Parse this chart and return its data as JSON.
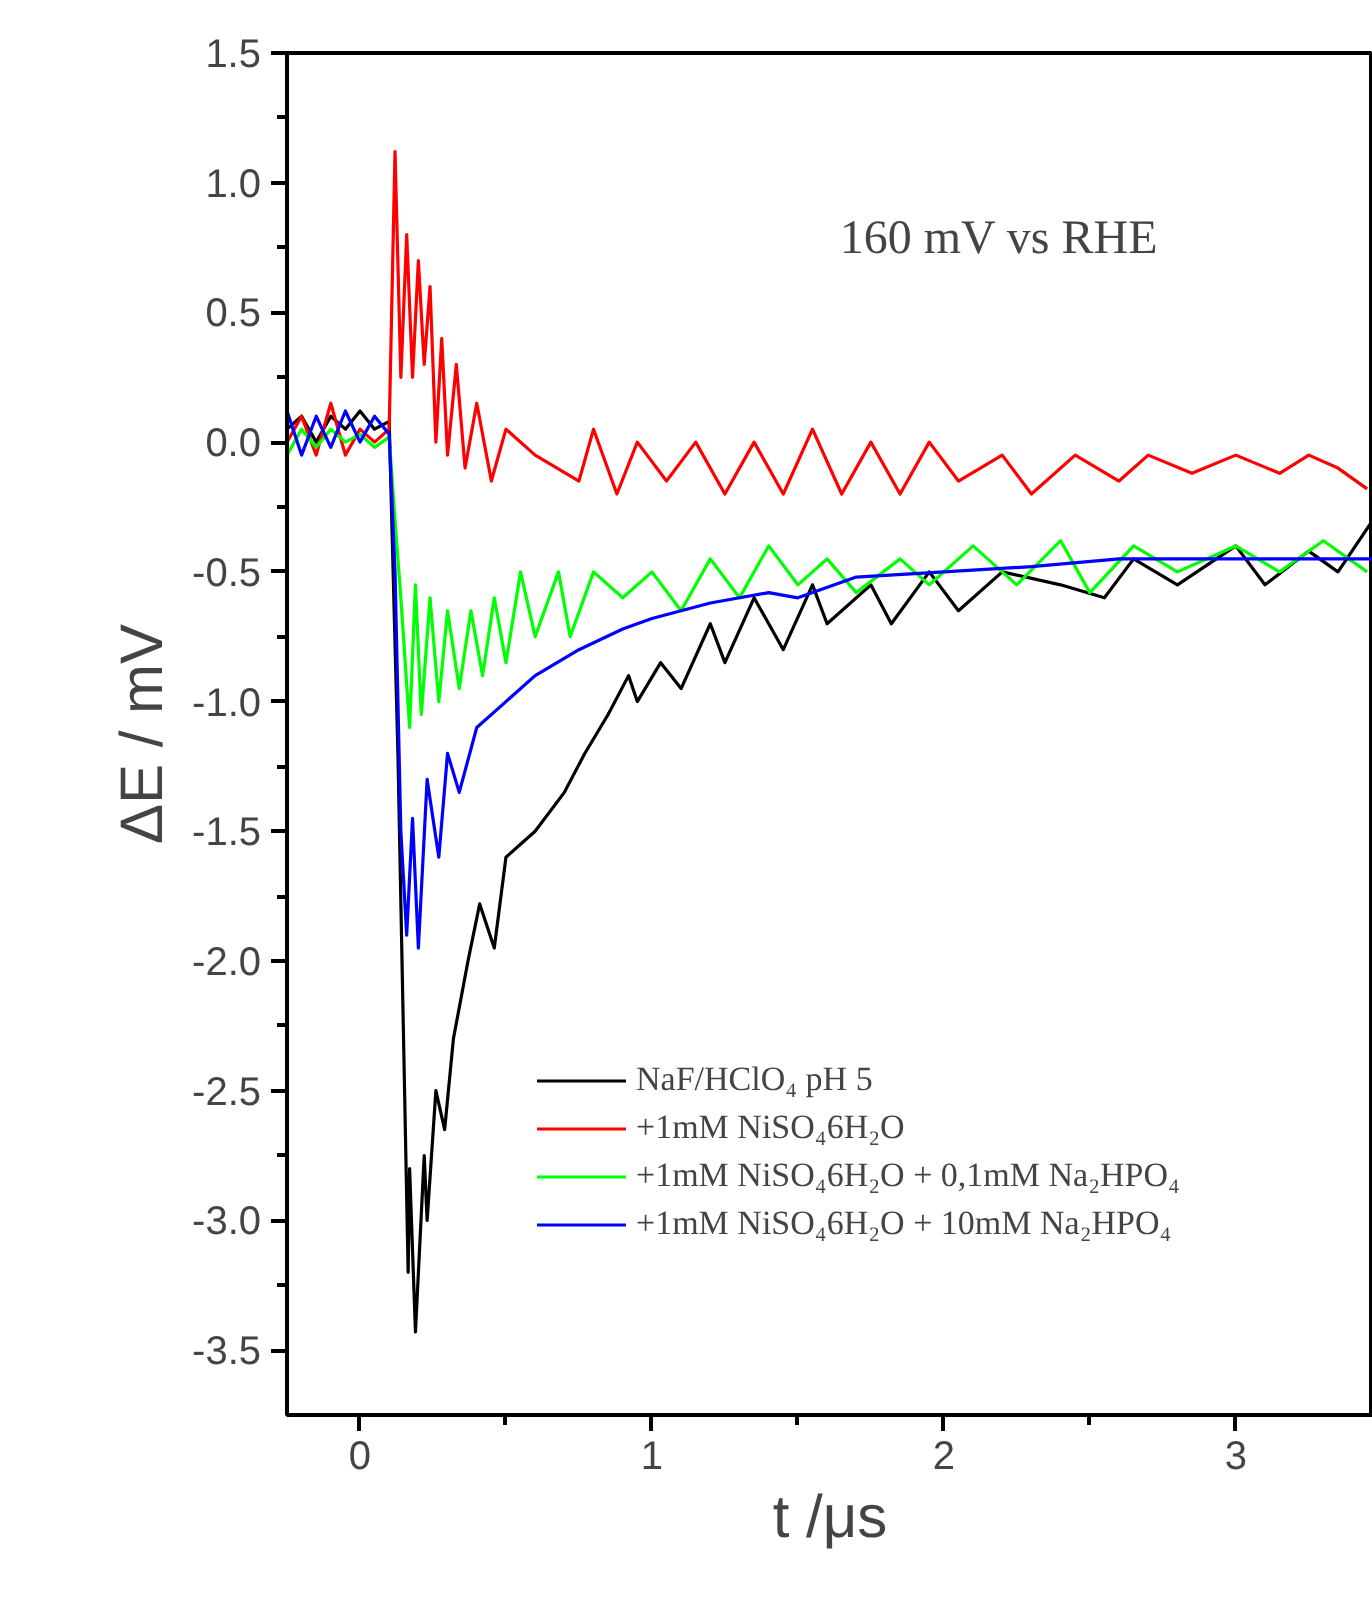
{
  "chart_data": {
    "type": "line",
    "xlabel": "t /μs",
    "ylabel": "ΔE / mV",
    "annotations": [
      "160 mV vs RHE"
    ],
    "xlim": [
      -0.25,
      3.47
    ],
    "ylim": [
      -3.75,
      1.5
    ],
    "xticks": [
      0,
      {
        "value": 0.5,
        "label": null
      },
      1,
      {
        "value": 1.5,
        "label": null
      },
      2,
      {
        "value": 2.5,
        "label": null
      },
      3
    ],
    "yticks": [
      {
        "value": -3.5,
        "label": "-3.5"
      },
      {
        "value": -3.25,
        "label": null
      },
      {
        "value": -3.0,
        "label": "-3.0"
      },
      {
        "value": -2.75,
        "label": null
      },
      {
        "value": -2.5,
        "label": "-2.5"
      },
      {
        "value": -2.25,
        "label": null
      },
      {
        "value": -2.0,
        "label": "-2.0"
      },
      {
        "value": -1.75,
        "label": null
      },
      {
        "value": -1.5,
        "label": "-1.5"
      },
      {
        "value": -1.25,
        "label": null
      },
      {
        "value": -1.0,
        "label": "-1.0"
      },
      {
        "value": -0.75,
        "label": null
      },
      {
        "value": -0.5,
        "label": "-0.5"
      },
      {
        "value": -0.25,
        "label": null
      },
      {
        "value": 0,
        "label": "0.0"
      },
      {
        "value": 0.25,
        "label": null
      },
      {
        "value": 0.5,
        "label": "0.5"
      },
      {
        "value": 0.75,
        "label": null
      },
      {
        "value": 1.0,
        "label": "1.0"
      },
      {
        "value": 1.25,
        "label": null
      },
      {
        "value": 1.5,
        "label": "1.5"
      }
    ],
    "grid": false,
    "legend": "bottom right",
    "series": [
      {
        "name": "NaF/HClO₄ pH 5",
        "color": "#000000",
        "x": [
          -0.25,
          -0.2,
          -0.15,
          -0.1,
          -0.05,
          0.0,
          0.05,
          0.1,
          0.13,
          0.165,
          0.17,
          0.19,
          0.22,
          0.23,
          0.26,
          0.29,
          0.32,
          0.37,
          0.41,
          0.46,
          0.5,
          0.6,
          0.7,
          0.77,
          0.85,
          0.92,
          0.95,
          1.03,
          1.1,
          1.2,
          1.25,
          1.35,
          1.45,
          1.55,
          1.6,
          1.75,
          1.82,
          1.95,
          2.05,
          2.2,
          2.4,
          2.55,
          2.65,
          2.8,
          3.0,
          3.1,
          3.25,
          3.35,
          3.47
        ],
        "values": [
          0.05,
          0.1,
          0.0,
          0.1,
          0.05,
          0.12,
          0.05,
          0.08,
          -1.2,
          -3.2,
          -2.8,
          -3.43,
          -2.75,
          -3.0,
          -2.5,
          -2.65,
          -2.3,
          -2.0,
          -1.78,
          -1.95,
          -1.6,
          -1.5,
          -1.35,
          -1.2,
          -1.05,
          -0.9,
          -1.0,
          -0.85,
          -0.95,
          -0.7,
          -0.85,
          -0.6,
          -0.8,
          -0.55,
          -0.7,
          -0.55,
          -0.7,
          -0.5,
          -0.65,
          -0.5,
          -0.55,
          -0.6,
          -0.45,
          -0.55,
          -0.4,
          -0.55,
          -0.42,
          -0.5,
          -0.3
        ]
      },
      {
        "name": "+1mM NiSO₄6H₂O",
        "color": "#ff0000",
        "x": [
          -0.25,
          -0.2,
          -0.15,
          -0.1,
          -0.05,
          0.0,
          0.05,
          0.1,
          0.12,
          0.14,
          0.16,
          0.18,
          0.2,
          0.22,
          0.24,
          0.26,
          0.28,
          0.3,
          0.33,
          0.36,
          0.4,
          0.45,
          0.5,
          0.6,
          0.75,
          0.8,
          0.88,
          0.95,
          1.05,
          1.15,
          1.25,
          1.35,
          1.45,
          1.55,
          1.65,
          1.75,
          1.85,
          1.95,
          2.05,
          2.2,
          2.3,
          2.45,
          2.6,
          2.7,
          2.85,
          3.0,
          3.15,
          3.25,
          3.35,
          3.45
        ],
        "values": [
          0.0,
          0.1,
          -0.05,
          0.15,
          -0.05,
          0.05,
          0.0,
          0.05,
          1.12,
          0.25,
          0.8,
          0.25,
          0.7,
          0.3,
          0.6,
          0.0,
          0.4,
          -0.05,
          0.3,
          -0.1,
          0.15,
          -0.15,
          0.05,
          -0.05,
          -0.15,
          0.05,
          -0.2,
          0.0,
          -0.15,
          0.0,
          -0.2,
          0.0,
          -0.2,
          0.05,
          -0.2,
          0.0,
          -0.2,
          0.0,
          -0.15,
          -0.05,
          -0.2,
          -0.05,
          -0.15,
          -0.05,
          -0.12,
          -0.05,
          -0.12,
          -0.05,
          -0.1,
          -0.18
        ]
      },
      {
        "name": "+1mM NiSO₄6H₂O + 0,1mM Na₂HPO₄",
        "color": "#00ff00",
        "x": [
          -0.25,
          -0.2,
          -0.15,
          -0.1,
          -0.05,
          0.0,
          0.05,
          0.1,
          0.12,
          0.14,
          0.17,
          0.19,
          0.21,
          0.24,
          0.27,
          0.3,
          0.34,
          0.38,
          0.42,
          0.46,
          0.5,
          0.55,
          0.6,
          0.68,
          0.72,
          0.8,
          0.9,
          1.0,
          1.1,
          1.2,
          1.3,
          1.4,
          1.5,
          1.6,
          1.7,
          1.85,
          1.95,
          2.1,
          2.25,
          2.4,
          2.5,
          2.65,
          2.8,
          3.0,
          3.15,
          3.3,
          3.45
        ],
        "values": [
          -0.05,
          0.05,
          -0.02,
          0.05,
          0.0,
          0.03,
          -0.02,
          0.02,
          -0.3,
          -0.6,
          -1.1,
          -0.55,
          -1.05,
          -0.6,
          -1.0,
          -0.65,
          -0.95,
          -0.65,
          -0.9,
          -0.6,
          -0.85,
          -0.5,
          -0.75,
          -0.5,
          -0.75,
          -0.5,
          -0.6,
          -0.5,
          -0.65,
          -0.45,
          -0.6,
          -0.4,
          -0.55,
          -0.45,
          -0.58,
          -0.45,
          -0.55,
          -0.4,
          -0.55,
          -0.38,
          -0.58,
          -0.4,
          -0.5,
          -0.4,
          -0.5,
          -0.38,
          -0.5
        ]
      },
      {
        "name": "+1mM NiSO₄6H₂O + 10mM Na₂HPO₄",
        "color": "#0000ff",
        "x": [
          -0.25,
          -0.2,
          -0.15,
          -0.1,
          -0.05,
          0.0,
          0.05,
          0.1,
          0.12,
          0.14,
          0.16,
          0.18,
          0.2,
          0.23,
          0.27,
          0.3,
          0.34,
          0.4,
          0.5,
          0.6,
          0.75,
          0.9,
          1.0,
          1.2,
          1.4,
          1.5,
          1.7,
          2.0,
          2.3,
          2.6,
          3.0,
          3.47
        ],
        "values": [
          0.12,
          -0.05,
          0.1,
          -0.02,
          0.12,
          0.0,
          0.1,
          0.03,
          -0.5,
          -1.5,
          -1.9,
          -1.45,
          -1.95,
          -1.3,
          -1.6,
          -1.2,
          -1.35,
          -1.1,
          -1.0,
          -0.9,
          -0.8,
          -0.72,
          -0.68,
          -0.62,
          -0.58,
          -0.6,
          -0.52,
          -0.5,
          -0.48,
          -0.45,
          -0.45,
          -0.45
        ]
      }
    ]
  }
}
